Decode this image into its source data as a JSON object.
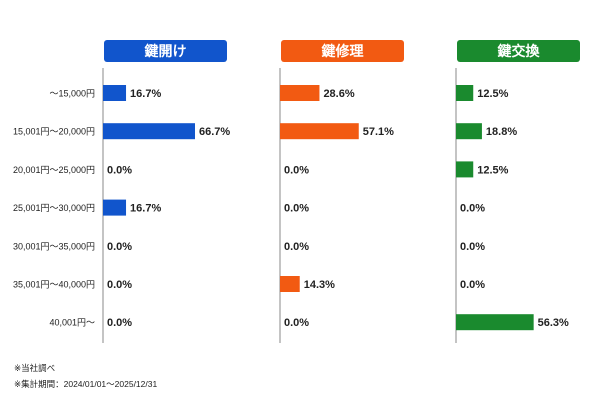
{
  "chart_data": {
    "type": "bar",
    "orientation": "horizontal",
    "categories": [
      "〜15,000円",
      "15,001円〜20,000円",
      "20,001円〜25,000円",
      "25,001円〜30,000円",
      "30,001円〜35,000円",
      "35,001円〜40,000円",
      "40,001円〜"
    ],
    "series": [
      {
        "name": "鍵開け",
        "color": "#1155cc",
        "values": [
          16.7,
          66.7,
          0.0,
          16.7,
          0.0,
          0.0,
          0.0
        ],
        "labels": [
          "16.7%",
          "66.7%",
          "0.0%",
          "16.7%",
          "0.0%",
          "0.0%",
          "0.0%"
        ]
      },
      {
        "name": "鍵修理",
        "color": "#f25a12",
        "values": [
          28.6,
          57.1,
          0.0,
          0.0,
          0.0,
          14.3,
          0.0
        ],
        "labels": [
          "28.6%",
          "57.1%",
          "0.0%",
          "0.0%",
          "0.0%",
          "14.3%",
          "0.0%"
        ]
      },
      {
        "name": "鍵交換",
        "color": "#1a8a2e",
        "values": [
          12.5,
          18.8,
          12.5,
          0.0,
          0.0,
          0.0,
          56.3
        ],
        "labels": [
          "12.5%",
          "18.8%",
          "12.5%",
          "0.0%",
          "0.0%",
          "0.0%",
          "56.3%"
        ]
      }
    ],
    "xlim": [
      0,
      100
    ],
    "legend": "panel-headers"
  },
  "notes": {
    "source": "※当社調べ",
    "period": "※集計期間：2024/01/01〜2025/12/31"
  }
}
